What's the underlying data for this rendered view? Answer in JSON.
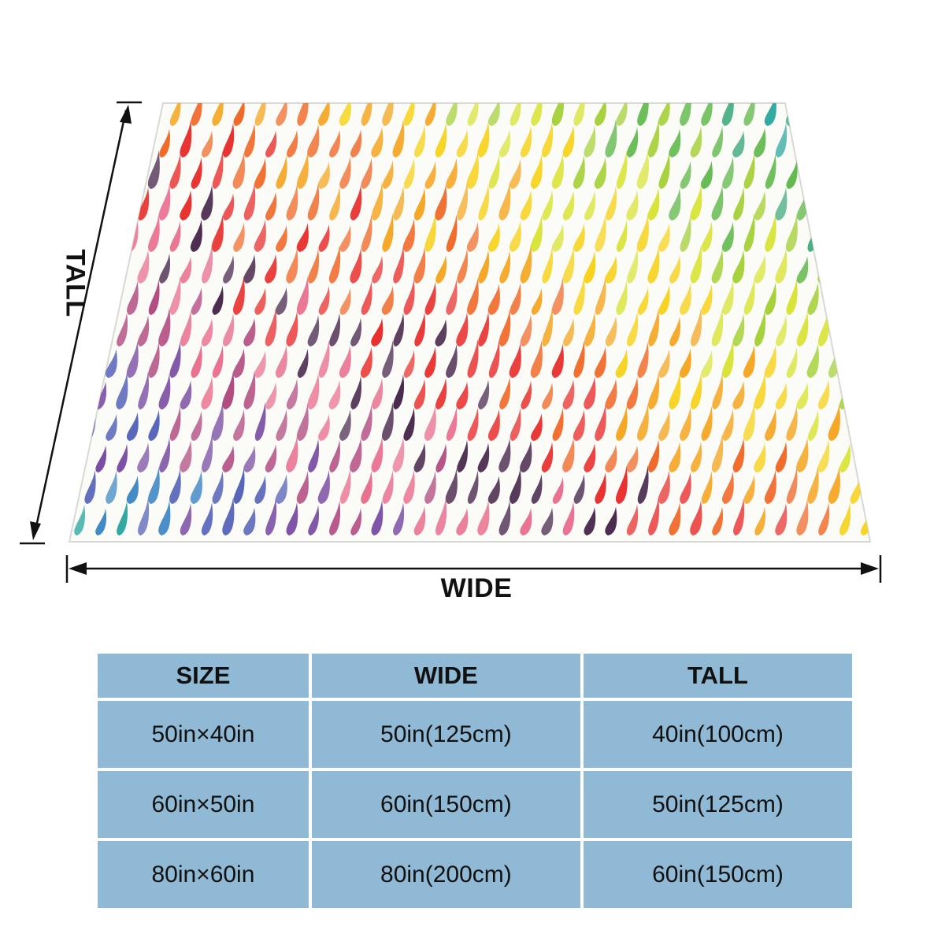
{
  "product": {
    "dimension_labels": {
      "wide": "WIDE",
      "tall": "TALL"
    },
    "pattern_name": "rainbow-watercolor-raindrops"
  },
  "size_table": {
    "headers": [
      "SIZE",
      "WIDE",
      "TALL"
    ],
    "rows": [
      [
        "50in×40in",
        "50in(125cm)",
        "40in(100cm)"
      ],
      [
        "60in×50in",
        "60in(150cm)",
        "50in(125cm)"
      ],
      [
        "80in×60in",
        "80in(200cm)",
        "60in(150cm)"
      ]
    ]
  },
  "colors": {
    "table_fill": "#8fb9d4",
    "background": "#ffffff",
    "drop_palette": [
      "#e8312f",
      "#f06a2a",
      "#f5a623",
      "#f7d21c",
      "#d9e43a",
      "#a6d13b",
      "#5fb84a",
      "#3aa87a",
      "#2fa8a0",
      "#3b86c4",
      "#5563b8",
      "#7a4ea3",
      "#b0487e",
      "#e9708f",
      "#4a2a4e"
    ]
  }
}
